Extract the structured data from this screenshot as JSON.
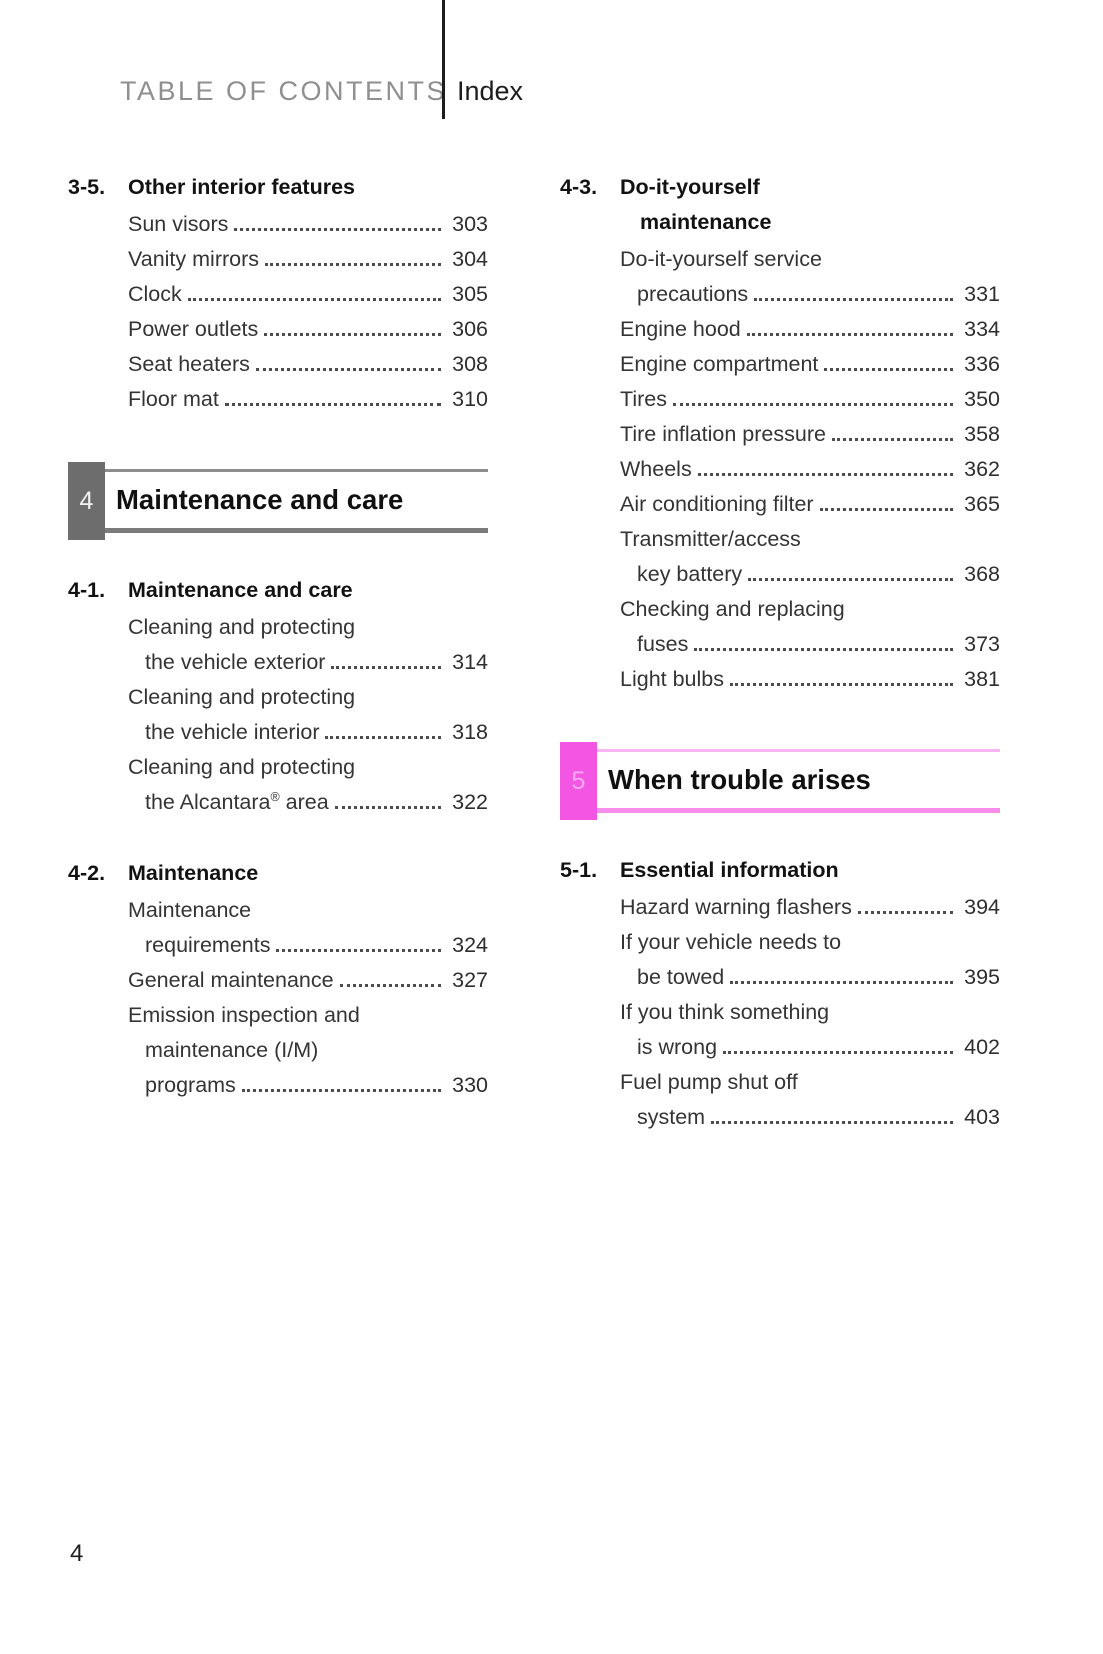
{
  "header": {
    "brand": "TABLE OF CONTENTS",
    "tab": "Index"
  },
  "footer": {
    "page_number": "4"
  },
  "left_column": {
    "groups": [
      {
        "type": "subsection",
        "number": "3-5.",
        "title_lines": [
          "Other interior features"
        ],
        "items": [
          {
            "lines": [
              "Sun visors"
            ],
            "page": "303"
          },
          {
            "lines": [
              "Vanity mirrors"
            ],
            "page": "304"
          },
          {
            "lines": [
              "Clock"
            ],
            "page": "305"
          },
          {
            "lines": [
              "Power outlets"
            ],
            "page": "306"
          },
          {
            "lines": [
              "Seat heaters"
            ],
            "page": "308"
          },
          {
            "lines": [
              "Floor mat"
            ],
            "page": "310"
          }
        ]
      },
      {
        "type": "chapter",
        "number": "4",
        "title": "Maintenance and care",
        "tab_bg": "#6d6d6d",
        "tab_fg": "#f2f2f2",
        "border_top": "#8d8d8d",
        "border_bottom": "#7b7b7b"
      },
      {
        "type": "subsection",
        "number": "4-1.",
        "title_lines": [
          "Maintenance and care"
        ],
        "items": [
          {
            "lines": [
              "Cleaning and protecting",
              "the vehicle exterior"
            ],
            "page": "314"
          },
          {
            "lines": [
              "Cleaning and protecting",
              "the vehicle interior"
            ],
            "page": "318"
          },
          {
            "lines": [
              "Cleaning and protecting",
              "the Alcantara® area"
            ],
            "page": "322"
          }
        ]
      },
      {
        "type": "subsection",
        "number": "4-2.",
        "title_lines": [
          "Maintenance"
        ],
        "items": [
          {
            "lines": [
              "Maintenance",
              "requirements"
            ],
            "page": "324"
          },
          {
            "lines": [
              "General maintenance"
            ],
            "page": "327"
          },
          {
            "lines": [
              "Emission inspection and",
              "maintenance (I/M)",
              "programs"
            ],
            "page": "330"
          }
        ]
      }
    ]
  },
  "right_column": {
    "groups": [
      {
        "type": "subsection",
        "number": "4-3.",
        "title_lines": [
          "Do-it-yourself",
          "maintenance"
        ],
        "items": [
          {
            "lines": [
              "Do-it-yourself service",
              "precautions"
            ],
            "page": "331"
          },
          {
            "lines": [
              "Engine hood"
            ],
            "page": "334"
          },
          {
            "lines": [
              "Engine compartment"
            ],
            "page": "336"
          },
          {
            "lines": [
              "Tires"
            ],
            "page": "350"
          },
          {
            "lines": [
              "Tire inflation pressure"
            ],
            "page": "358"
          },
          {
            "lines": [
              "Wheels"
            ],
            "page": "362"
          },
          {
            "lines": [
              "Air conditioning filter"
            ],
            "page": "365"
          },
          {
            "lines": [
              "Transmitter/access",
              "key battery"
            ],
            "page": "368"
          },
          {
            "lines": [
              "Checking and replacing",
              "fuses"
            ],
            "page": "373"
          },
          {
            "lines": [
              "Light bulbs"
            ],
            "page": "381"
          }
        ]
      },
      {
        "type": "chapter",
        "number": "5",
        "title": "When trouble arises",
        "tab_bg": "#f356e3",
        "tab_fg": "#ffa8f4",
        "border_top": "#fab5f2",
        "border_bottom": "#f88eeb"
      },
      {
        "type": "subsection",
        "number": "5-1.",
        "title_lines": [
          "Essential information"
        ],
        "items": [
          {
            "lines": [
              "Hazard warning flashers"
            ],
            "page": "394"
          },
          {
            "lines": [
              "If your vehicle needs to",
              "be towed"
            ],
            "page": "395"
          },
          {
            "lines": [
              "If you think something",
              "is wrong"
            ],
            "page": "402"
          },
          {
            "lines": [
              "Fuel pump shut off",
              "system"
            ],
            "page": "403"
          }
        ]
      }
    ]
  }
}
